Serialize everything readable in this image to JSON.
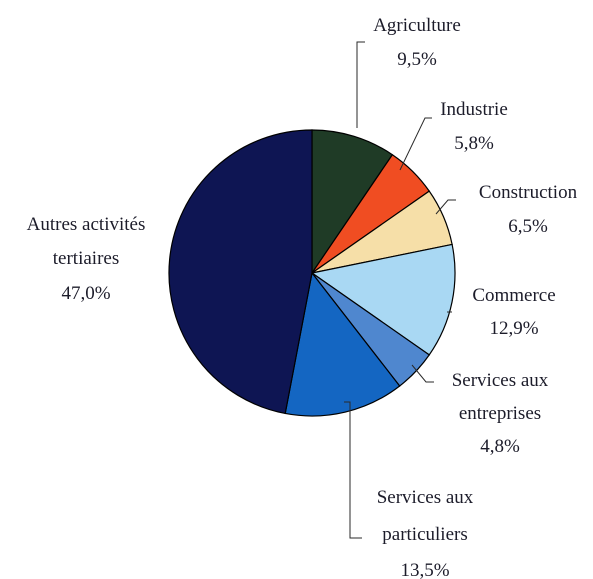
{
  "chart_data": {
    "type": "pie",
    "title": "",
    "slices": [
      {
        "label": "Agriculture",
        "value_label": "9,5%",
        "value": 9.5,
        "color": "#1f3b26"
      },
      {
        "label": "Industrie",
        "value_label": "5,8%",
        "value": 5.8,
        "color": "#f04d22"
      },
      {
        "label": "Construction",
        "value_label": "6,5%",
        "value": 6.5,
        "color": "#f6dfa8"
      },
      {
        "label": "Commerce",
        "value_label": "12,9%",
        "value": 12.9,
        "color": "#a9d8f3"
      },
      {
        "label": "Services aux entreprises",
        "label_lines": [
          "Services aux",
          "entreprises"
        ],
        "value_label": "4,8%",
        "value": 4.8,
        "color": "#4f87cf"
      },
      {
        "label": "Services aux particuliers",
        "label_lines": [
          "Services aux",
          "particuliers"
        ],
        "value_label": "13,5%",
        "value": 13.5,
        "color": "#1466c2"
      },
      {
        "label": "Autres activités tertiaires",
        "label_lines": [
          "Autres activités",
          "tertiaires"
        ],
        "value_label": "47,0%",
        "value": 47.0,
        "color": "#0e1553"
      }
    ],
    "start": "12 o'clock",
    "direction": "clockwise",
    "legend": "none"
  }
}
